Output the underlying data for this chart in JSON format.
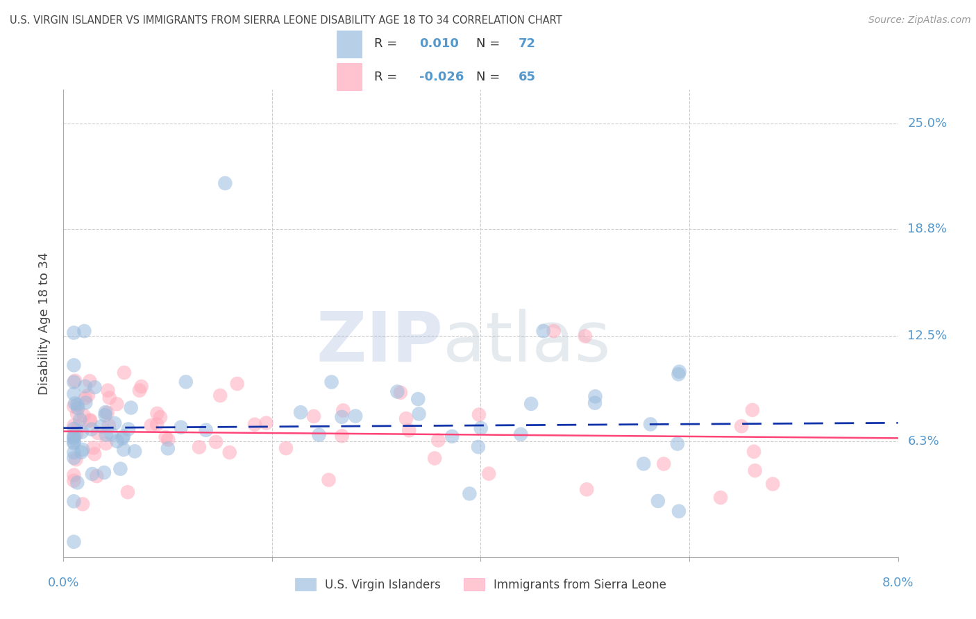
{
  "title": "U.S. VIRGIN ISLANDER VS IMMIGRANTS FROM SIERRA LEONE DISABILITY AGE 18 TO 34 CORRELATION CHART",
  "source": "Source: ZipAtlas.com",
  "ylabel": "Disability Age 18 to 34",
  "ytick_labels": [
    "25.0%",
    "18.8%",
    "12.5%",
    "6.3%"
  ],
  "ytick_values": [
    0.25,
    0.188,
    0.125,
    0.063
  ],
  "xlim": [
    0.0,
    0.08
  ],
  "ylim": [
    -0.005,
    0.27
  ],
  "r_blue": "0.010",
  "n_blue": "72",
  "r_pink": "-0.026",
  "n_pink": "65",
  "legend_label_blue": "U.S. Virgin Islanders",
  "legend_label_pink": "Immigrants from Sierra Leone",
  "color_blue": "#99BBDD",
  "color_pink": "#FFAABB",
  "line_blue": "#1133AA",
  "line_pink": "#FF4477",
  "grid_color": "#CCCCCC",
  "spine_color": "#AAAAAA",
  "label_color": "#5599CC",
  "text_color": "#444444",
  "watermark_zip_color": "#AABBDD",
  "watermark_atlas_color": "#AABBCC",
  "blue_trend_x": [
    0.0,
    0.08
  ],
  "blue_trend_y": [
    0.071,
    0.074
  ],
  "pink_trend_x": [
    0.0,
    0.08
  ],
  "pink_trend_y": [
    0.069,
    0.065
  ]
}
